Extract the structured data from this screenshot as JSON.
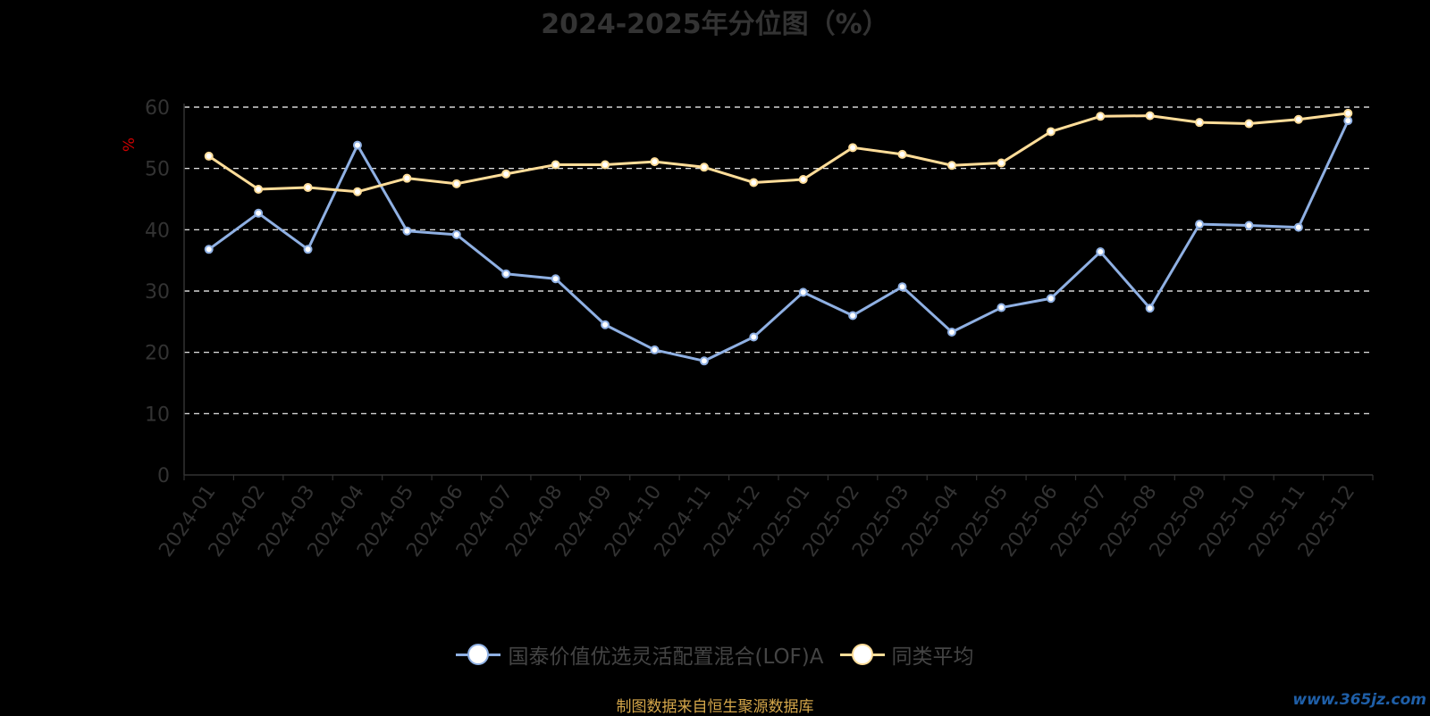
{
  "chart_data": {
    "type": "line",
    "title": "2024-2025年分位图（%）",
    "ylabel": "%",
    "ylim": [
      0,
      60
    ],
    "yticks": [
      0,
      10,
      20,
      30,
      40,
      50,
      60
    ],
    "grid": true,
    "legend_position": "bottom-center",
    "categories": [
      "2024-01",
      "2024-02",
      "2024-03",
      "2024-04",
      "2024-05",
      "2024-06",
      "2024-07",
      "2024-08",
      "2024-09",
      "2024-10",
      "2024-11",
      "2024-12",
      "2025-01",
      "2025-02",
      "2025-03",
      "2025-04",
      "2025-05",
      "2025-06",
      "2025-07",
      "2025-08",
      "2025-09",
      "2025-10",
      "2025-11",
      "2025-12"
    ],
    "series": [
      {
        "name": "国泰价值优选灵活配置混合(LOF)A",
        "color": "#8fb0e3",
        "values": [
          36.8,
          42.7,
          36.8,
          53.8,
          39.8,
          39.2,
          32.8,
          32.0,
          24.5,
          20.4,
          18.6,
          22.5,
          29.8,
          26.0,
          30.7,
          23.3,
          27.3,
          28.8,
          36.4,
          27.2,
          40.9,
          40.7,
          40.4,
          57.8
        ]
      },
      {
        "name": "同类平均",
        "color": "#ffdd99",
        "values": [
          52.0,
          46.6,
          46.9,
          46.2,
          48.4,
          47.5,
          49.1,
          50.6,
          50.6,
          51.1,
          50.2,
          47.7,
          48.2,
          53.4,
          52.3,
          50.5,
          50.9,
          56.0,
          58.5,
          58.6,
          57.5,
          57.3,
          58.0,
          59.0
        ]
      }
    ]
  },
  "footer": {
    "source": "制图数据来自恒生聚源数据库",
    "watermark": "www.365jz.com"
  }
}
